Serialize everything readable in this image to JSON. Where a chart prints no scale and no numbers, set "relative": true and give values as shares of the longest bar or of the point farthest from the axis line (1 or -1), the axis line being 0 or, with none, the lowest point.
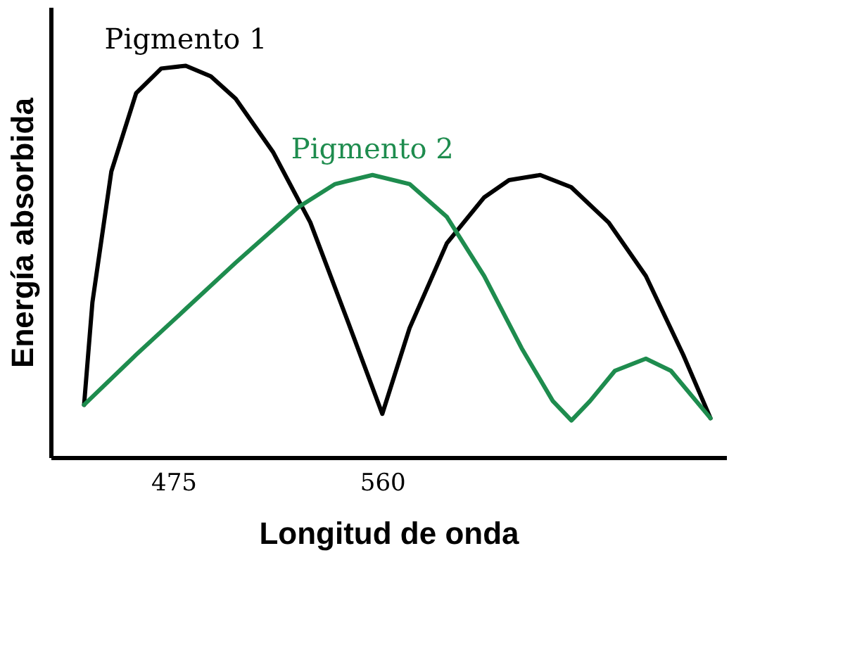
{
  "chart_data": {
    "type": "line",
    "relative": true,
    "xlabel": "Longitud de onda",
    "ylabel": "Energía absorbida",
    "xlim": [
      425,
      700
    ],
    "xticks": [
      475,
      560
    ],
    "grid": false,
    "legend": false,
    "marker": "none",
    "line_style": "solid",
    "series": [
      {
        "name": "Pigmento 1",
        "color": "#000000",
        "x": [
          438.6,
          442,
          449.7,
          459.8,
          470,
          480,
          490.2,
          500.3,
          515.5,
          530.7,
          545.8,
          560,
          571.1,
          586.3,
          601.5,
          611.6,
          624.3,
          636.9,
          652.1,
          667.3,
          682.5,
          693.6
        ],
        "values": [
          0.134,
          0.396,
          0.73,
          0.93,
          0.993,
          1.0,
          0.973,
          0.916,
          0.78,
          0.6,
          0.35,
          0.111,
          0.33,
          0.547,
          0.664,
          0.708,
          0.721,
          0.69,
          0.6,
          0.463,
          0.262,
          0.1
        ]
      },
      {
        "name": "Pigmento 2",
        "color": "#1e8c4e",
        "x": [
          438.6,
          459.8,
          480,
          500.3,
          525.6,
          540.8,
          556,
          571.1,
          586.3,
          601.5,
          616.7,
          629.4,
          637,
          644.6,
          654.7,
          667.3,
          677.5,
          693.6
        ],
        "values": [
          0.134,
          0.262,
          0.379,
          0.497,
          0.638,
          0.698,
          0.721,
          0.698,
          0.614,
          0.463,
          0.279,
          0.144,
          0.094,
          0.144,
          0.221,
          0.252,
          0.221,
          0.1
        ]
      }
    ]
  }
}
